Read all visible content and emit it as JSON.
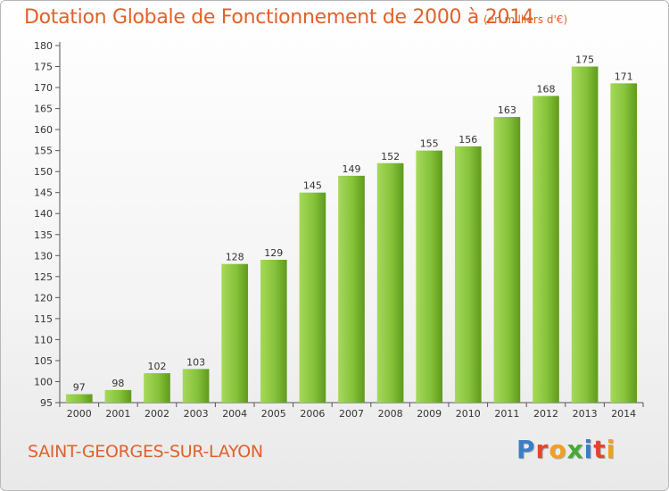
{
  "chart_data": {
    "type": "bar",
    "title": "Dotation Globale de Fonctionnement de 2000 à 2014",
    "subtitle": "(en milliers d'€)",
    "categories": [
      "2000",
      "2001",
      "2002",
      "2003",
      "2004",
      "2005",
      "2006",
      "2007",
      "2008",
      "2009",
      "2010",
      "2011",
      "2012",
      "2013",
      "2014"
    ],
    "values": [
      97,
      98,
      102,
      103,
      128,
      129,
      145,
      149,
      152,
      155,
      156,
      163,
      168,
      175,
      171
    ],
    "ylim": [
      95,
      180
    ],
    "yticks": [
      95,
      100,
      105,
      110,
      115,
      120,
      125,
      130,
      135,
      140,
      145,
      150,
      155,
      160,
      165,
      170,
      175,
      180
    ],
    "grid": false,
    "bar_color": "#7cb832"
  },
  "footer": {
    "place": "SAINT-GEORGES-SUR-LAYON",
    "logo_text": "Proxiti",
    "logo_colors": [
      "#3a7fc6",
      "#e8432e",
      "#f0a020",
      "#4aa83a",
      "#3a7fc6",
      "#e8432e",
      "#f0a020"
    ]
  },
  "colors": {
    "title": "#e0612a",
    "bar_light": "#9fd24e",
    "bar_dark": "#5f9a1c"
  }
}
